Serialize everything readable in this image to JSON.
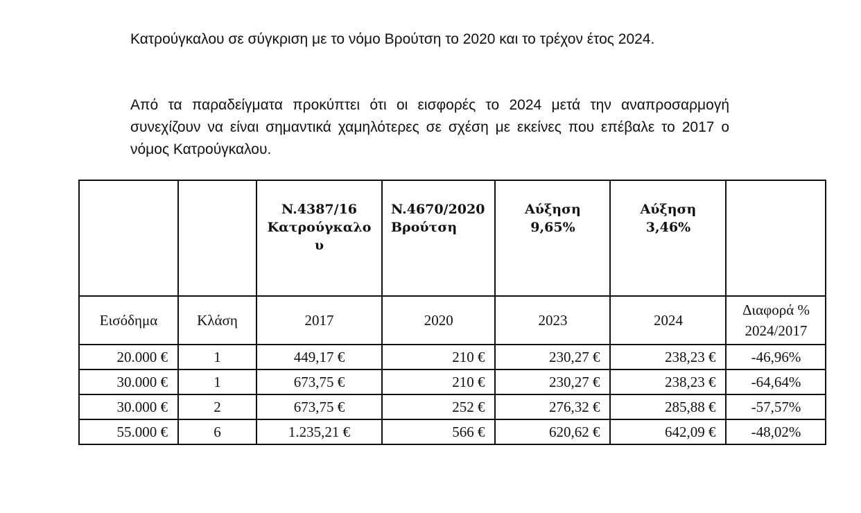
{
  "paragraphs": [
    "Κατρούγκαλου σε σύγκριση με το νόμο Βρούτση το 2020 και το τρέχον έτος 2024.",
    "Από τα παραδείγματα προκύπτει ότι οι εισφορές το 2024 μετά την αναπροσαρμογή συνεχίζουν να είναι σημαντικά χαμηλότερες σε σχέση με εκείνες που επέβαλε το 2017 ο νόμος Κατρούγκαλου."
  ],
  "table": {
    "header_top": [
      {
        "lines": []
      },
      {
        "lines": []
      },
      {
        "lines": [
          "N.4387/16",
          "Κατρούγκαλο",
          "υ"
        ]
      },
      {
        "lines": [
          "N.4670/2020",
          "Βρούτση"
        ]
      },
      {
        "lines": [
          "Αύξηση",
          "9,65%"
        ]
      },
      {
        "lines": [
          "Αύξηση",
          "3,46%"
        ]
      },
      {
        "lines": []
      }
    ],
    "header_sub": [
      {
        "lines": [
          "Εισόδημα"
        ]
      },
      {
        "lines": [
          "Κλάση"
        ]
      },
      {
        "lines": [
          "2017"
        ]
      },
      {
        "lines": [
          "2020"
        ]
      },
      {
        "lines": [
          "2023"
        ]
      },
      {
        "lines": [
          "2024"
        ]
      },
      {
        "lines": [
          "Διαφορά %",
          "2024/2017"
        ]
      }
    ],
    "rows": [
      [
        "20.000 €",
        "1",
        "449,17 €",
        "210 €",
        "230,27 €",
        "238,23 €",
        "-46,96%"
      ],
      [
        "30.000 €",
        "1",
        "673,75 €",
        "210 €",
        "230,27 €",
        "238,23 €",
        "-64,64%"
      ],
      [
        "30.000 €",
        "2",
        "673,75 €",
        "252 €",
        "276,32 €",
        "285,88 €",
        "-57,57%"
      ],
      [
        "55.000 €",
        "6",
        "1.235,21 €",
        "566 €",
        "620,62 €",
        "642,09 €",
        "-48,02%"
      ]
    ]
  }
}
